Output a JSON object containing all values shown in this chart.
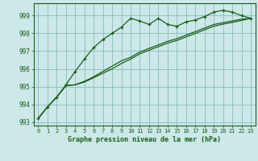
{
  "title": "Graphe pression niveau de la mer (hPa)",
  "bg_color": "#cce8e8",
  "grid_color": "#88bbbb",
  "line_color": "#1a5e1a",
  "marker_color": "#1a5e1a",
  "xlim": [
    -0.5,
    23.5
  ],
  "ylim": [
    992.8,
    999.7
  ],
  "yticks": [
    993,
    994,
    995,
    996,
    997,
    998,
    999
  ],
  "xticks": [
    0,
    1,
    2,
    3,
    4,
    5,
    6,
    7,
    8,
    9,
    10,
    11,
    12,
    13,
    14,
    15,
    16,
    17,
    18,
    19,
    20,
    21,
    22,
    23
  ],
  "series1": [
    993.2,
    993.85,
    994.4,
    995.1,
    995.85,
    996.55,
    997.2,
    997.65,
    998.0,
    998.35,
    998.85,
    998.7,
    998.5,
    998.85,
    998.5,
    998.4,
    998.65,
    998.75,
    998.95,
    999.2,
    999.3,
    999.2,
    999.0,
    998.85
  ],
  "series2": [
    993.2,
    993.85,
    994.4,
    995.05,
    995.1,
    995.3,
    995.55,
    995.85,
    996.15,
    996.45,
    996.65,
    996.95,
    997.15,
    997.35,
    997.55,
    997.7,
    997.9,
    998.1,
    998.3,
    998.5,
    998.6,
    998.7,
    998.8,
    998.85
  ],
  "series3": [
    993.2,
    993.85,
    994.4,
    995.05,
    995.1,
    995.25,
    995.5,
    995.75,
    996.0,
    996.3,
    996.55,
    996.85,
    997.05,
    997.25,
    997.45,
    997.6,
    997.8,
    998.0,
    998.2,
    998.4,
    998.52,
    998.62,
    998.73,
    998.85
  ]
}
